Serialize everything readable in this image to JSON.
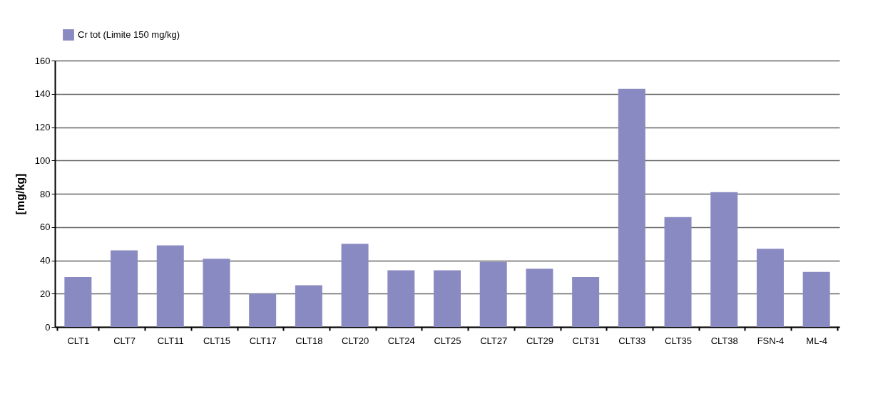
{
  "chart_data": {
    "type": "bar",
    "categories": [
      "CLT1",
      "CLT7",
      "CLT11",
      "CLT15",
      "CLT17",
      "CLT18",
      "CLT20",
      "CLT24",
      "CLT25",
      "CLT27",
      "CLT29",
      "CLT31",
      "CLT33",
      "CLT35",
      "CLT38",
      "FSN-4",
      "ML-4"
    ],
    "series": [
      {
        "name": "Cr tot (Limite 150 mg/kg)",
        "color": "#8a8ac2",
        "values": [
          30,
          46,
          49,
          41,
          20,
          25,
          50,
          34,
          34,
          39,
          35,
          30,
          143,
          66,
          81,
          47,
          33
        ]
      }
    ],
    "ylabel": "[mg/kg]",
    "ylim": [
      0,
      160
    ],
    "yticks": [
      0,
      20,
      40,
      60,
      80,
      100,
      120,
      140,
      160
    ],
    "grid": "y",
    "legend": "top"
  }
}
